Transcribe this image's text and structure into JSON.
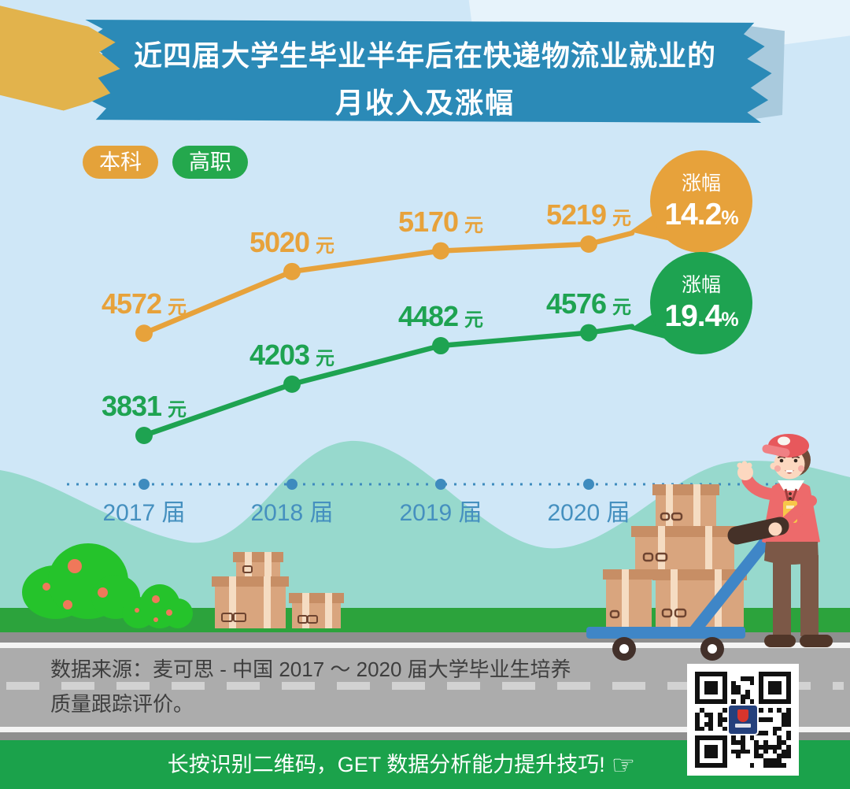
{
  "title": {
    "line1": "近四届大学生毕业半年后在快递物流业就业的",
    "line2": "月收入及涨幅"
  },
  "legend": [
    {
      "label": "本科",
      "color": "#E4A23A"
    },
    {
      "label": "高职",
      "color": "#24A84D"
    }
  ],
  "chart_data": {
    "type": "line",
    "title": "近四届大学生毕业半年后在快递物流业就业的月收入及涨幅",
    "categories": [
      "2017 届",
      "2018 届",
      "2019 届",
      "2020 届"
    ],
    "unit": "元",
    "series": [
      {
        "name": "本科",
        "color": "#E7A23B",
        "values": [
          4572,
          5020,
          5170,
          5219
        ],
        "growth_label": "涨幅",
        "growth_value": "14.2",
        "growth_unit": "%"
      },
      {
        "name": "高职",
        "color": "#1EA351",
        "values": [
          3831,
          4203,
          4482,
          4576
        ],
        "growth_label": "涨幅",
        "growth_value": "19.4",
        "growth_unit": "%"
      }
    ],
    "legend_position": "top-left",
    "grid": false,
    "x_axis_style": "dotted line with node dots",
    "ylim": [
      3700,
      5400
    ]
  },
  "source": {
    "line1": "数据来源：麦可思 - 中国 2017 ～ 2020 届大学毕业生培养",
    "line2": "质量跟踪评价。"
  },
  "footer": {
    "text": "长按识别二维码，GET 数据分析能力提升技巧!",
    "hand_icon": "☞"
  },
  "colors": {
    "background": "#CFE7F7",
    "banner": "#2B8AB7",
    "ribbon": "#E2B34C",
    "flap": "#A9CADD",
    "axis": "#3E8BBE",
    "wave": "#97D9CD",
    "grass": "#2CA33C",
    "road": "#ACACAC",
    "road_shoulder": "#8F8F8F",
    "road_dash": "#D2D2D2",
    "footer_bar": "#1BA24B",
    "source_text": "#3E3E3E"
  }
}
